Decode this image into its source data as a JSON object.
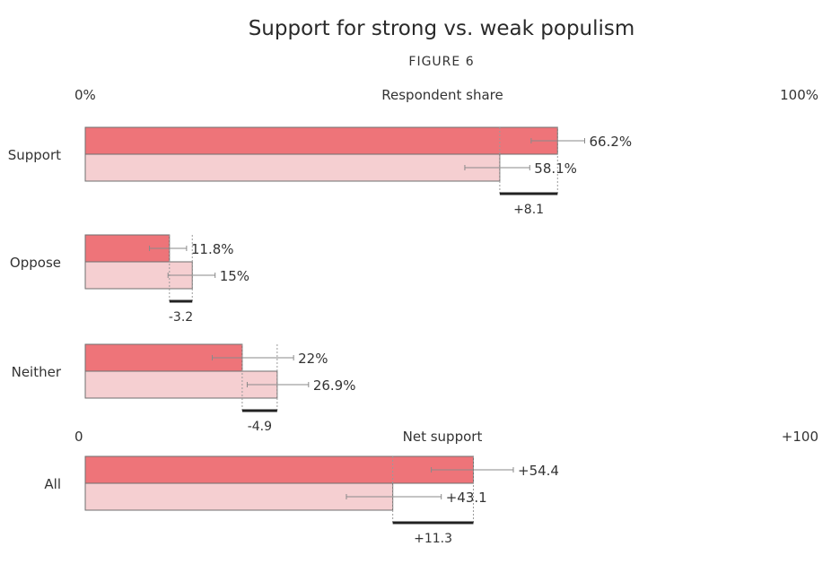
{
  "chart_data": {
    "type": "bar",
    "title": "Support for strong vs. weak populism",
    "subtitle": "FIGURE 6",
    "panels": [
      {
        "axis_label": "Respondent share",
        "axis_min_label": "0%",
        "axis_max_label": "100%",
        "xlim": [
          0,
          100
        ],
        "categories": [
          "Support",
          "Oppose",
          "Neither"
        ],
        "series": [
          {
            "values": [
              66.2,
              11.8,
              22.0
            ],
            "labels": [
              "66.2%",
              "11.8%",
              "22%"
            ],
            "error_low": [
              62.5,
              9.0,
              17.8
            ],
            "error_high": [
              70.0,
              14.2,
              29.2
            ],
            "color": "#ee7479"
          },
          {
            "values": [
              58.1,
              15.0,
              26.9
            ],
            "labels": [
              "58.1%",
              "15%",
              "26.9%"
            ],
            "error_low": [
              53.2,
              11.6,
              22.7
            ],
            "error_high": [
              62.3,
              18.2,
              31.3
            ],
            "color": "#f5cfd1"
          }
        ],
        "differences": [
          "+8.1",
          "-3.2",
          "-4.9"
        ]
      },
      {
        "axis_label": "Net support",
        "axis_min_label": "0",
        "axis_max_label": "+100",
        "xlim": [
          0,
          100
        ],
        "categories": [
          "All"
        ],
        "series": [
          {
            "values": [
              54.4
            ],
            "labels": [
              "+54.4"
            ],
            "error_low": [
              48.5
            ],
            "error_high": [
              60.0
            ],
            "color": "#ee7479"
          },
          {
            "values": [
              43.1
            ],
            "labels": [
              "+43.1"
            ],
            "error_low": [
              36.6
            ],
            "error_high": [
              49.9
            ],
            "color": "#f5cfd1"
          }
        ],
        "differences": [
          "+11.3"
        ]
      }
    ]
  }
}
